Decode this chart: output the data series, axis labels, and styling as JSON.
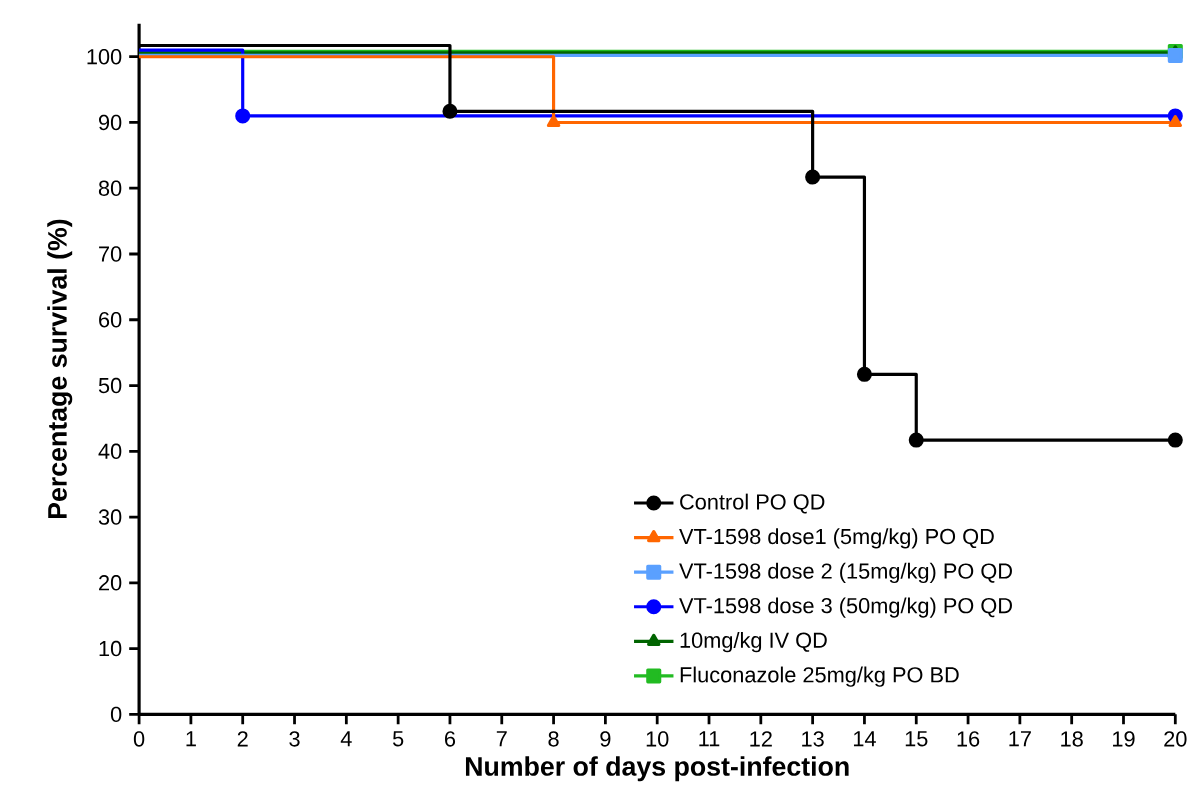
{
  "chart_data": {
    "type": "step",
    "xlabel": "Number of days post-infection",
    "ylabel": "Percentage survival (%)",
    "xlim": [
      0,
      20
    ],
    "xticks": [
      0,
      1,
      2,
      3,
      4,
      5,
      6,
      7,
      8,
      9,
      10,
      11,
      12,
      13,
      14,
      15,
      16,
      17,
      18,
      19,
      20
    ],
    "ylim": [
      0,
      105
    ],
    "yticks": [
      0,
      10,
      20,
      30,
      40,
      50,
      60,
      70,
      80,
      90,
      100
    ],
    "grid": false,
    "legend": "bottom right",
    "series": [
      {
        "name": "Control PO QD",
        "color": "#000000",
        "marker": "circle",
        "x": [
          0,
          6,
          13,
          14,
          15,
          20
        ],
        "values": [
          101.7,
          91.7,
          81.7,
          51.7,
          41.7,
          41.7
        ]
      },
      {
        "name": "VT-1598 dose1 (5mg/kg) PO QD",
        "color": "#ff6600",
        "marker": "triangle",
        "x": [
          0,
          8,
          20
        ],
        "values": [
          100,
          90,
          90
        ]
      },
      {
        "name": "VT-1598 dose 2 (15mg/kg) PO QD",
        "color": "#5aa0ff",
        "marker": "square",
        "x": [
          0,
          20
        ],
        "values": [
          100.2,
          100.2
        ]
      },
      {
        "name": "VT-1598 dose 3 (50mg/kg) PO QD",
        "color": "#0000ff",
        "marker": "circle",
        "x": [
          0,
          2,
          20
        ],
        "values": [
          101,
          91,
          91
        ]
      },
      {
        "name": "10mg/kg IV QD",
        "color": "#006400",
        "marker": "triangle",
        "x": [
          0,
          20
        ],
        "values": [
          100.6,
          100.6
        ]
      },
      {
        "name": "Fluconazole 25mg/kg PO BD",
        "color": "#22bb22",
        "marker": "square",
        "x": [
          0,
          20
        ],
        "values": [
          100.8,
          100.8
        ]
      }
    ]
  }
}
